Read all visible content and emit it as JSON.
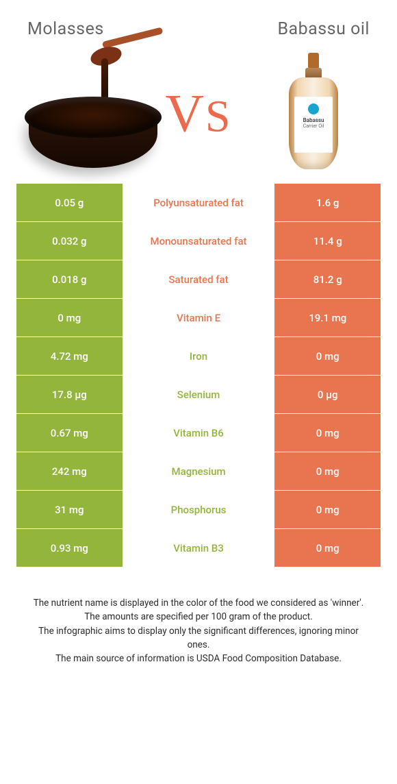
{
  "colors": {
    "left_bg": "#93b53c",
    "right_bg": "#e8754f",
    "mid_left_text": "#93b53c",
    "mid_right_text": "#e8754f",
    "vs_color": "#ea6a4b",
    "title_color": "#666666",
    "foot_color": "#2b2b2b"
  },
  "titles": {
    "left": "Molasses",
    "right": "Babassu oil",
    "vs": "VS"
  },
  "bottle_label": {
    "line1": "Babassu",
    "line2": "Carrier Oil"
  },
  "rows": [
    {
      "left": "0.05 g",
      "mid": "Polyunsaturated fat",
      "right": "1.6 g",
      "winner": "right"
    },
    {
      "left": "0.032 g",
      "mid": "Monounsaturated fat",
      "right": "11.4 g",
      "winner": "right"
    },
    {
      "left": "0.018 g",
      "mid": "Saturated fat",
      "right": "81.2 g",
      "winner": "right"
    },
    {
      "left": "0 mg",
      "mid": "Vitamin E",
      "right": "19.1 mg",
      "winner": "right"
    },
    {
      "left": "4.72 mg",
      "mid": "Iron",
      "right": "0 mg",
      "winner": "left"
    },
    {
      "left": "17.8 µg",
      "mid": "Selenium",
      "right": "0 µg",
      "winner": "left"
    },
    {
      "left": "0.67 mg",
      "mid": "Vitamin B6",
      "right": "0 mg",
      "winner": "left"
    },
    {
      "left": "242 mg",
      "mid": "Magnesium",
      "right": "0 mg",
      "winner": "left"
    },
    {
      "left": "31 mg",
      "mid": "Phosphorus",
      "right": "0 mg",
      "winner": "left"
    },
    {
      "left": "0.93 mg",
      "mid": "Vitamin B3",
      "right": "0 mg",
      "winner": "left"
    }
  ],
  "footnotes": [
    "The nutrient name is displayed in the color of the food we considered as 'winner'.",
    "The amounts are specified per 100 gram of the product.",
    "The infographic aims to display only the significant differences, ignoring minor ones.",
    "The main source of information is USDA Food Composition Database."
  ]
}
